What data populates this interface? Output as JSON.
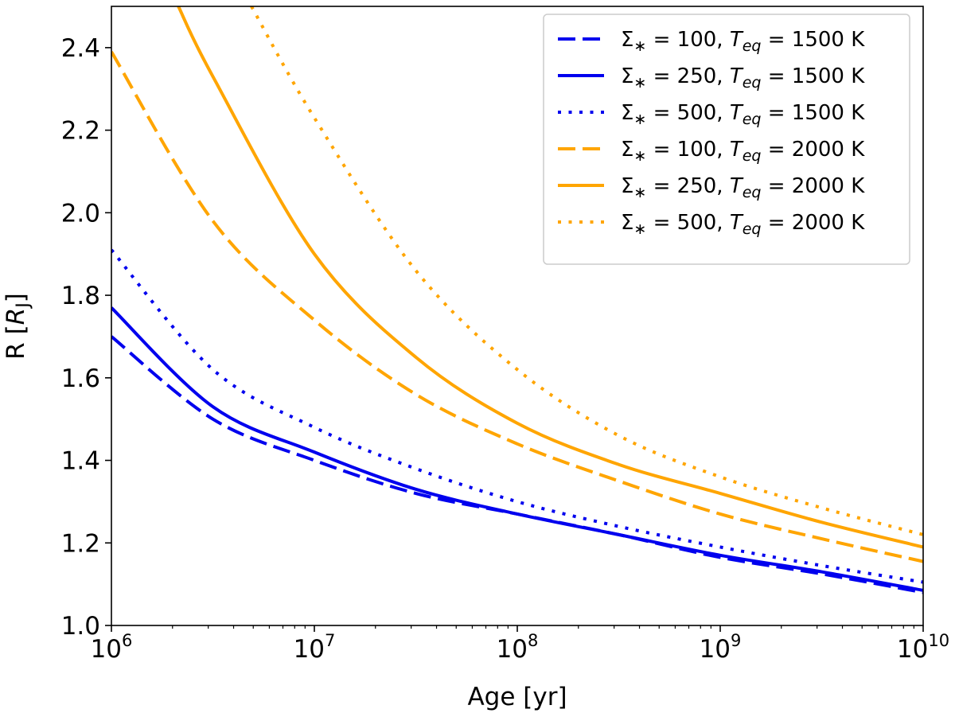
{
  "chart_data": {
    "type": "line",
    "title": "",
    "xlabel": "Age [yr]",
    "ylabel": "R [R_J]",
    "ylabel_parts": {
      "prefix": "R [",
      "var": "R",
      "sub": "J",
      "suffix": "]"
    },
    "xscale": "log",
    "xlim_exp": [
      6,
      10
    ],
    "ylim": [
      1.0,
      2.5
    ],
    "x_ticks": [
      {
        "exp": 6,
        "base": "10",
        "sup": "6"
      },
      {
        "exp": 7,
        "base": "10",
        "sup": "7"
      },
      {
        "exp": 8,
        "base": "10",
        "sup": "8"
      },
      {
        "exp": 9,
        "base": "10",
        "sup": "9"
      },
      {
        "exp": 10,
        "base": "10",
        "sup": "10"
      }
    ],
    "y_ticks": [
      {
        "value": 1.0,
        "label": "1.0"
      },
      {
        "value": 1.2,
        "label": "1.2"
      },
      {
        "value": 1.4,
        "label": "1.4"
      },
      {
        "value": 1.6,
        "label": "1.6"
      },
      {
        "value": 1.8,
        "label": "1.8"
      },
      {
        "value": 2.0,
        "label": "2.0"
      },
      {
        "value": 2.2,
        "label": "2.2"
      },
      {
        "value": 2.4,
        "label": "2.4"
      }
    ],
    "grid": false,
    "legend_position": "top-right",
    "colors": {
      "blue": "#0000ee",
      "orange": "#ffa500",
      "axis": "#000000"
    },
    "series": [
      {
        "name": "Σ∗ = 100, Teq = 1500 K",
        "sigma": "100",
        "teq": "1500 K",
        "color": "#0000ee",
        "style": "dashed",
        "log_age": [
          6,
          6.5,
          7,
          7.5,
          8,
          8.5,
          9,
          9.5,
          10
        ],
        "radius": [
          1.7,
          1.5,
          1.4,
          1.32,
          1.27,
          1.22,
          1.165,
          1.125,
          1.08
        ]
      },
      {
        "name": "Σ∗ = 250, Teq = 1500 K",
        "sigma": "250",
        "teq": "1500 K",
        "color": "#0000ee",
        "style": "solid",
        "log_age": [
          6,
          6.5,
          7,
          7.5,
          8,
          8.5,
          9,
          9.5,
          10
        ],
        "radius": [
          1.77,
          1.53,
          1.42,
          1.33,
          1.27,
          1.22,
          1.17,
          1.13,
          1.085
        ]
      },
      {
        "name": "Σ∗ = 500, Teq = 1500 K",
        "sigma": "500",
        "teq": "1500 K",
        "color": "#0000ee",
        "style": "dotted",
        "log_age": [
          6,
          6.5,
          7,
          7.5,
          8,
          8.5,
          9,
          9.5,
          10
        ],
        "radius": [
          1.91,
          1.62,
          1.48,
          1.38,
          1.3,
          1.24,
          1.19,
          1.145,
          1.105
        ]
      },
      {
        "name": "Σ∗ = 100, Teq = 2000 K",
        "sigma": "100",
        "teq": "2000 K",
        "color": "#ffa500",
        "style": "dashed",
        "log_age": [
          6,
          6.5,
          7,
          7.5,
          8,
          8.5,
          9,
          9.5,
          10
        ],
        "radius": [
          2.39,
          1.98,
          1.74,
          1.56,
          1.44,
          1.35,
          1.27,
          1.21,
          1.155
        ]
      },
      {
        "name": "Σ∗ = 250, Teq = 2000 K",
        "sigma": "250",
        "teq": "2000 K",
        "color": "#ffa500",
        "style": "solid",
        "log_age": [
          6.33,
          6.5,
          7,
          7.5,
          8,
          8.5,
          9,
          9.5,
          10
        ],
        "radius": [
          2.5,
          2.33,
          1.9,
          1.65,
          1.49,
          1.39,
          1.32,
          1.25,
          1.19
        ]
      },
      {
        "name": "Σ∗ = 500, Teq = 2000 K",
        "sigma": "500",
        "teq": "2000 K",
        "color": "#ffa500",
        "style": "dotted",
        "log_age": [
          6.69,
          7,
          7.5,
          8,
          8.5,
          9,
          9.5,
          10
        ],
        "radius": [
          2.5,
          2.23,
          1.86,
          1.62,
          1.46,
          1.36,
          1.285,
          1.22
        ]
      }
    ]
  }
}
